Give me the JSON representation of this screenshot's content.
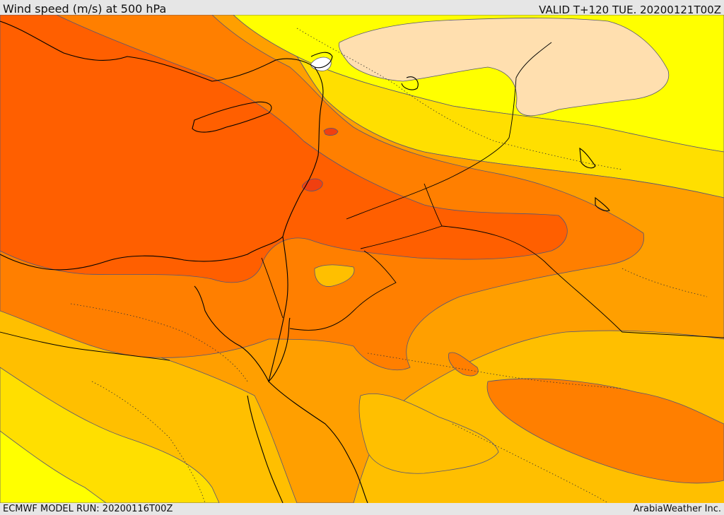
{
  "header": {
    "title": "Wind speed (m/s) at 500 hPa",
    "valid": "VALID T+120 TUE. 20200121T00Z"
  },
  "footer": {
    "model_run": "ECMWF MODEL RUN: 20200116T00Z",
    "credit": "ArabiaWeather Inc."
  },
  "palette": {
    "band_1": "#ffff00",
    "band_2": "#ffdf00",
    "band_3": "#ffbf00",
    "band_4": "#ff9f00",
    "band_5": "#ff7f00",
    "band_6": "#ff5f00",
    "band_7": "#f04010",
    "calm_pale": "#ffdfaf",
    "calm_white": "#ffffff",
    "contour": "#555577",
    "coastline": "#000000"
  }
}
